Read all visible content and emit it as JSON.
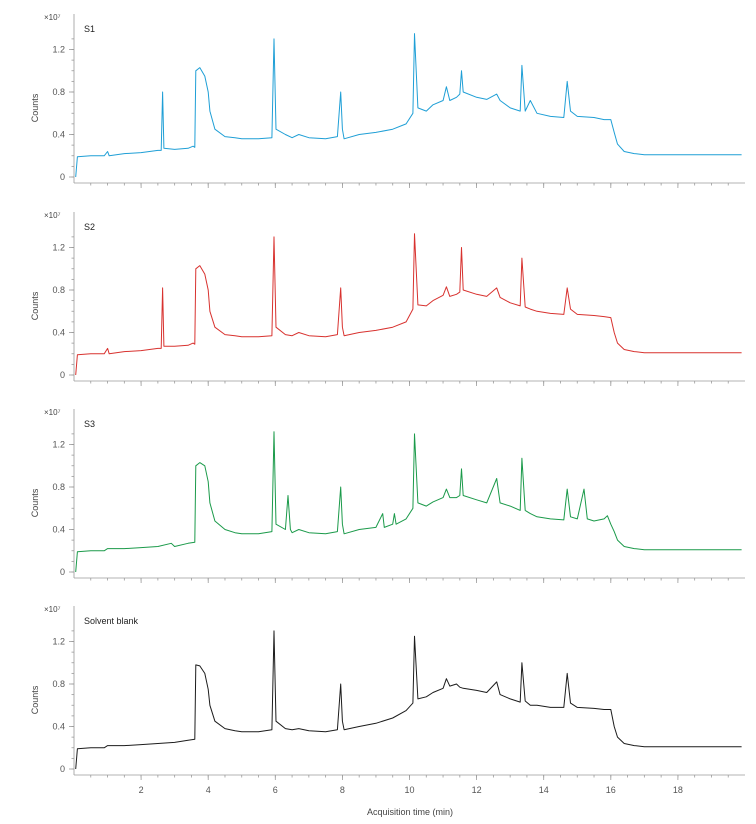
{
  "chart_data": {
    "type": "line",
    "xlabel": "Acquisition time (min)",
    "ylabel": "Counts",
    "y_multiplier": "×10⁷",
    "xlim": [
      0,
      20
    ],
    "ylim": [
      0,
      1.4
    ],
    "x_ticks": [
      2,
      4,
      6,
      8,
      10,
      12,
      14,
      16,
      18
    ],
    "y_ticks": [
      0,
      0.4,
      0.8,
      1.2
    ],
    "x_tick_labels": [
      "2",
      "4",
      "6",
      "8",
      "10",
      "12",
      "14",
      "16",
      "18"
    ],
    "y_tick_labels": [
      "0",
      "0.4",
      "0.8",
      "1.2"
    ],
    "panels": [
      {
        "title": "S1",
        "color": "#1f9fd6",
        "points": [
          [
            0.05,
            0.0
          ],
          [
            0.1,
            0.19
          ],
          [
            0.5,
            0.2
          ],
          [
            0.9,
            0.2
          ],
          [
            1.0,
            0.24
          ],
          [
            1.05,
            0.2
          ],
          [
            1.5,
            0.22
          ],
          [
            2.0,
            0.23
          ],
          [
            2.5,
            0.25
          ],
          [
            2.6,
            0.25
          ],
          [
            2.64,
            0.8
          ],
          [
            2.68,
            0.27
          ],
          [
            3.0,
            0.26
          ],
          [
            3.4,
            0.27
          ],
          [
            3.55,
            0.29
          ],
          [
            3.6,
            0.28
          ],
          [
            3.63,
            1.0
          ],
          [
            3.75,
            1.03
          ],
          [
            3.9,
            0.95
          ],
          [
            4.0,
            0.8
          ],
          [
            4.05,
            0.62
          ],
          [
            4.2,
            0.45
          ],
          [
            4.5,
            0.38
          ],
          [
            4.8,
            0.37
          ],
          [
            5.0,
            0.36
          ],
          [
            5.5,
            0.36
          ],
          [
            5.9,
            0.37
          ],
          [
            5.96,
            1.3
          ],
          [
            6.02,
            0.45
          ],
          [
            6.3,
            0.4
          ],
          [
            6.5,
            0.37
          ],
          [
            6.7,
            0.4
          ],
          [
            7.0,
            0.37
          ],
          [
            7.5,
            0.36
          ],
          [
            7.85,
            0.38
          ],
          [
            7.95,
            0.8
          ],
          [
            8.0,
            0.45
          ],
          [
            8.05,
            0.36
          ],
          [
            8.5,
            0.4
          ],
          [
            9.0,
            0.42
          ],
          [
            9.5,
            0.45
          ],
          [
            9.9,
            0.5
          ],
          [
            10.1,
            0.6
          ],
          [
            10.15,
            1.35
          ],
          [
            10.25,
            0.65
          ],
          [
            10.5,
            0.62
          ],
          [
            10.7,
            0.68
          ],
          [
            11.0,
            0.72
          ],
          [
            11.1,
            0.85
          ],
          [
            11.2,
            0.72
          ],
          [
            11.4,
            0.75
          ],
          [
            11.5,
            0.78
          ],
          [
            11.55,
            1.0
          ],
          [
            11.6,
            0.8
          ],
          [
            12.0,
            0.75
          ],
          [
            12.3,
            0.73
          ],
          [
            12.6,
            0.78
          ],
          [
            12.7,
            0.72
          ],
          [
            13.0,
            0.65
          ],
          [
            13.3,
            0.62
          ],
          [
            13.35,
            1.05
          ],
          [
            13.45,
            0.62
          ],
          [
            13.6,
            0.72
          ],
          [
            13.8,
            0.6
          ],
          [
            14.2,
            0.57
          ],
          [
            14.6,
            0.56
          ],
          [
            14.7,
            0.9
          ],
          [
            14.8,
            0.62
          ],
          [
            15.0,
            0.57
          ],
          [
            15.5,
            0.56
          ],
          [
            15.8,
            0.54
          ],
          [
            16.0,
            0.54
          ],
          [
            16.1,
            0.42
          ],
          [
            16.2,
            0.31
          ],
          [
            16.4,
            0.24
          ],
          [
            16.7,
            0.22
          ],
          [
            17.0,
            0.21
          ],
          [
            18.0,
            0.21
          ],
          [
            19.0,
            0.21
          ],
          [
            19.9,
            0.21
          ]
        ]
      },
      {
        "title": "S2",
        "color": "#d8322f",
        "points": [
          [
            0.05,
            0.0
          ],
          [
            0.1,
            0.19
          ],
          [
            0.5,
            0.2
          ],
          [
            0.9,
            0.2
          ],
          [
            1.0,
            0.25
          ],
          [
            1.05,
            0.2
          ],
          [
            1.5,
            0.22
          ],
          [
            2.0,
            0.23
          ],
          [
            2.5,
            0.25
          ],
          [
            2.6,
            0.25
          ],
          [
            2.64,
            0.82
          ],
          [
            2.68,
            0.27
          ],
          [
            3.0,
            0.27
          ],
          [
            3.4,
            0.28
          ],
          [
            3.55,
            0.3
          ],
          [
            3.6,
            0.29
          ],
          [
            3.63,
            1.0
          ],
          [
            3.75,
            1.03
          ],
          [
            3.9,
            0.95
          ],
          [
            4.0,
            0.8
          ],
          [
            4.05,
            0.6
          ],
          [
            4.2,
            0.45
          ],
          [
            4.5,
            0.38
          ],
          [
            4.8,
            0.37
          ],
          [
            5.0,
            0.36
          ],
          [
            5.5,
            0.36
          ],
          [
            5.9,
            0.37
          ],
          [
            5.96,
            1.3
          ],
          [
            6.02,
            0.45
          ],
          [
            6.3,
            0.38
          ],
          [
            6.5,
            0.37
          ],
          [
            6.7,
            0.4
          ],
          [
            7.0,
            0.37
          ],
          [
            7.5,
            0.36
          ],
          [
            7.85,
            0.38
          ],
          [
            7.95,
            0.82
          ],
          [
            8.0,
            0.45
          ],
          [
            8.05,
            0.37
          ],
          [
            8.5,
            0.4
          ],
          [
            9.0,
            0.42
          ],
          [
            9.5,
            0.45
          ],
          [
            9.9,
            0.5
          ],
          [
            10.1,
            0.62
          ],
          [
            10.15,
            1.33
          ],
          [
            10.25,
            0.66
          ],
          [
            10.5,
            0.65
          ],
          [
            10.7,
            0.7
          ],
          [
            11.0,
            0.75
          ],
          [
            11.1,
            0.83
          ],
          [
            11.2,
            0.74
          ],
          [
            11.4,
            0.76
          ],
          [
            11.5,
            0.78
          ],
          [
            11.55,
            1.2
          ],
          [
            11.6,
            0.8
          ],
          [
            12.0,
            0.76
          ],
          [
            12.3,
            0.74
          ],
          [
            12.6,
            0.82
          ],
          [
            12.7,
            0.73
          ],
          [
            13.0,
            0.68
          ],
          [
            13.3,
            0.65
          ],
          [
            13.35,
            1.1
          ],
          [
            13.45,
            0.64
          ],
          [
            13.6,
            0.62
          ],
          [
            13.8,
            0.6
          ],
          [
            14.2,
            0.58
          ],
          [
            14.6,
            0.57
          ],
          [
            14.7,
            0.82
          ],
          [
            14.8,
            0.62
          ],
          [
            15.0,
            0.57
          ],
          [
            15.5,
            0.56
          ],
          [
            15.8,
            0.55
          ],
          [
            16.0,
            0.54
          ],
          [
            16.1,
            0.4
          ],
          [
            16.2,
            0.3
          ],
          [
            16.4,
            0.24
          ],
          [
            16.7,
            0.22
          ],
          [
            17.0,
            0.21
          ],
          [
            18.0,
            0.21
          ],
          [
            19.0,
            0.21
          ],
          [
            19.9,
            0.21
          ]
        ]
      },
      {
        "title": "S3",
        "color": "#1b9a4a",
        "points": [
          [
            0.05,
            0.0
          ],
          [
            0.1,
            0.19
          ],
          [
            0.5,
            0.2
          ],
          [
            0.9,
            0.2
          ],
          [
            1.0,
            0.22
          ],
          [
            1.5,
            0.22
          ],
          [
            2.0,
            0.23
          ],
          [
            2.5,
            0.24
          ],
          [
            2.9,
            0.27
          ],
          [
            3.0,
            0.24
          ],
          [
            3.4,
            0.27
          ],
          [
            3.6,
            0.28
          ],
          [
            3.63,
            1.0
          ],
          [
            3.75,
            1.03
          ],
          [
            3.9,
            1.0
          ],
          [
            4.0,
            0.85
          ],
          [
            4.05,
            0.65
          ],
          [
            4.2,
            0.48
          ],
          [
            4.5,
            0.4
          ],
          [
            4.8,
            0.37
          ],
          [
            5.0,
            0.36
          ],
          [
            5.5,
            0.36
          ],
          [
            5.9,
            0.38
          ],
          [
            5.96,
            1.32
          ],
          [
            6.02,
            0.45
          ],
          [
            6.3,
            0.4
          ],
          [
            6.38,
            0.72
          ],
          [
            6.45,
            0.4
          ],
          [
            6.5,
            0.37
          ],
          [
            6.7,
            0.4
          ],
          [
            7.0,
            0.37
          ],
          [
            7.5,
            0.36
          ],
          [
            7.85,
            0.38
          ],
          [
            7.95,
            0.8
          ],
          [
            8.0,
            0.45
          ],
          [
            8.05,
            0.36
          ],
          [
            8.5,
            0.4
          ],
          [
            9.0,
            0.42
          ],
          [
            9.2,
            0.55
          ],
          [
            9.25,
            0.42
          ],
          [
            9.5,
            0.45
          ],
          [
            9.55,
            0.55
          ],
          [
            9.6,
            0.45
          ],
          [
            9.9,
            0.5
          ],
          [
            10.1,
            0.6
          ],
          [
            10.15,
            1.3
          ],
          [
            10.25,
            0.65
          ],
          [
            10.5,
            0.62
          ],
          [
            10.7,
            0.66
          ],
          [
            11.0,
            0.7
          ],
          [
            11.1,
            0.78
          ],
          [
            11.2,
            0.7
          ],
          [
            11.4,
            0.7
          ],
          [
            11.5,
            0.72
          ],
          [
            11.55,
            0.97
          ],
          [
            11.6,
            0.72
          ],
          [
            12.0,
            0.68
          ],
          [
            12.3,
            0.65
          ],
          [
            12.6,
            0.88
          ],
          [
            12.7,
            0.65
          ],
          [
            13.0,
            0.62
          ],
          [
            13.3,
            0.58
          ],
          [
            13.35,
            1.07
          ],
          [
            13.45,
            0.58
          ],
          [
            13.6,
            0.55
          ],
          [
            13.8,
            0.52
          ],
          [
            14.2,
            0.5
          ],
          [
            14.6,
            0.49
          ],
          [
            14.7,
            0.78
          ],
          [
            14.8,
            0.52
          ],
          [
            15.0,
            0.5
          ],
          [
            15.2,
            0.78
          ],
          [
            15.3,
            0.5
          ],
          [
            15.5,
            0.48
          ],
          [
            15.8,
            0.5
          ],
          [
            15.9,
            0.53
          ],
          [
            16.0,
            0.45
          ],
          [
            16.1,
            0.38
          ],
          [
            16.2,
            0.3
          ],
          [
            16.4,
            0.24
          ],
          [
            16.7,
            0.22
          ],
          [
            17.0,
            0.21
          ],
          [
            18.0,
            0.21
          ],
          [
            19.0,
            0.21
          ],
          [
            19.9,
            0.21
          ]
        ]
      },
      {
        "title": "Solvent blank",
        "color": "#1c1c1c",
        "points": [
          [
            0.05,
            0.0
          ],
          [
            0.1,
            0.19
          ],
          [
            0.5,
            0.2
          ],
          [
            0.9,
            0.2
          ],
          [
            1.0,
            0.22
          ],
          [
            1.5,
            0.22
          ],
          [
            2.0,
            0.23
          ],
          [
            2.5,
            0.24
          ],
          [
            3.0,
            0.25
          ],
          [
            3.4,
            0.27
          ],
          [
            3.6,
            0.28
          ],
          [
            3.63,
            0.98
          ],
          [
            3.75,
            0.97
          ],
          [
            3.9,
            0.9
          ],
          [
            4.0,
            0.75
          ],
          [
            4.05,
            0.6
          ],
          [
            4.2,
            0.45
          ],
          [
            4.5,
            0.38
          ],
          [
            4.8,
            0.36
          ],
          [
            5.0,
            0.35
          ],
          [
            5.5,
            0.35
          ],
          [
            5.9,
            0.37
          ],
          [
            5.96,
            1.3
          ],
          [
            6.02,
            0.45
          ],
          [
            6.3,
            0.38
          ],
          [
            6.5,
            0.37
          ],
          [
            6.7,
            0.38
          ],
          [
            7.0,
            0.36
          ],
          [
            7.5,
            0.35
          ],
          [
            7.85,
            0.37
          ],
          [
            7.95,
            0.8
          ],
          [
            8.0,
            0.45
          ],
          [
            8.05,
            0.37
          ],
          [
            8.5,
            0.4
          ],
          [
            9.0,
            0.43
          ],
          [
            9.5,
            0.48
          ],
          [
            9.9,
            0.55
          ],
          [
            10.1,
            0.62
          ],
          [
            10.15,
            1.25
          ],
          [
            10.25,
            0.66
          ],
          [
            10.5,
            0.68
          ],
          [
            10.7,
            0.72
          ],
          [
            11.0,
            0.76
          ],
          [
            11.1,
            0.85
          ],
          [
            11.2,
            0.78
          ],
          [
            11.4,
            0.8
          ],
          [
            11.5,
            0.77
          ],
          [
            11.6,
            0.76
          ],
          [
            12.0,
            0.74
          ],
          [
            12.3,
            0.72
          ],
          [
            12.6,
            0.82
          ],
          [
            12.7,
            0.7
          ],
          [
            13.0,
            0.66
          ],
          [
            13.3,
            0.63
          ],
          [
            13.35,
            1.0
          ],
          [
            13.45,
            0.64
          ],
          [
            13.6,
            0.6
          ],
          [
            13.8,
            0.6
          ],
          [
            14.2,
            0.58
          ],
          [
            14.6,
            0.58
          ],
          [
            14.7,
            0.9
          ],
          [
            14.8,
            0.62
          ],
          [
            15.0,
            0.58
          ],
          [
            15.5,
            0.57
          ],
          [
            15.8,
            0.56
          ],
          [
            16.0,
            0.56
          ],
          [
            16.1,
            0.4
          ],
          [
            16.2,
            0.3
          ],
          [
            16.4,
            0.24
          ],
          [
            16.7,
            0.22
          ],
          [
            17.0,
            0.21
          ],
          [
            18.0,
            0.21
          ],
          [
            19.0,
            0.21
          ],
          [
            19.9,
            0.21
          ]
        ]
      }
    ]
  }
}
